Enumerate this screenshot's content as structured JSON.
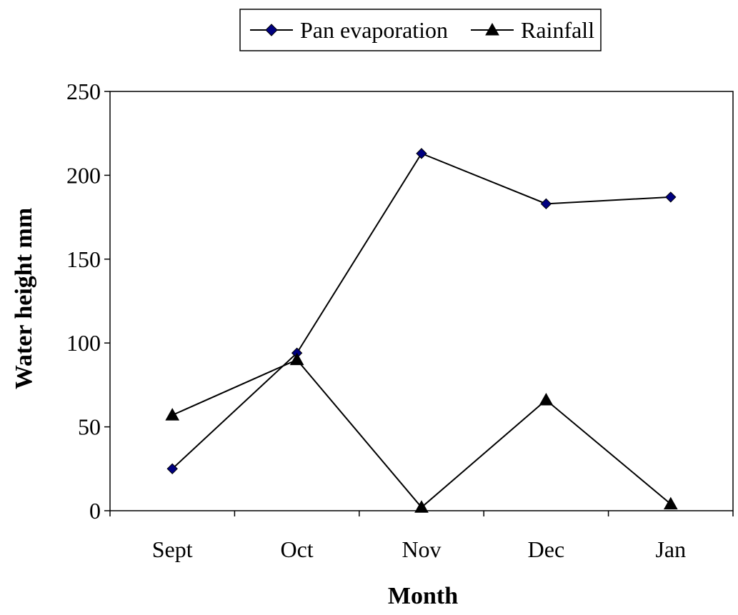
{
  "chart_data": {
    "type": "line",
    "categories": [
      "Sept",
      "Oct",
      "Nov",
      "Dec",
      "Jan"
    ],
    "series": [
      {
        "name": "Pan evaporation",
        "marker": "diamond",
        "color": "#000080",
        "values": [
          25,
          94,
          213,
          183,
          187
        ]
      },
      {
        "name": "Rainfall",
        "marker": "triangle",
        "color": "#000000",
        "values": [
          57,
          90,
          2,
          66,
          4
        ]
      }
    ],
    "xlabel": "Month",
    "ylabel": "Water height mm",
    "ylim": [
      0,
      250
    ],
    "yticks": [
      "0",
      "50",
      "100",
      "150",
      "200",
      "250"
    ],
    "grid": false,
    "legend_position": "top-center"
  }
}
